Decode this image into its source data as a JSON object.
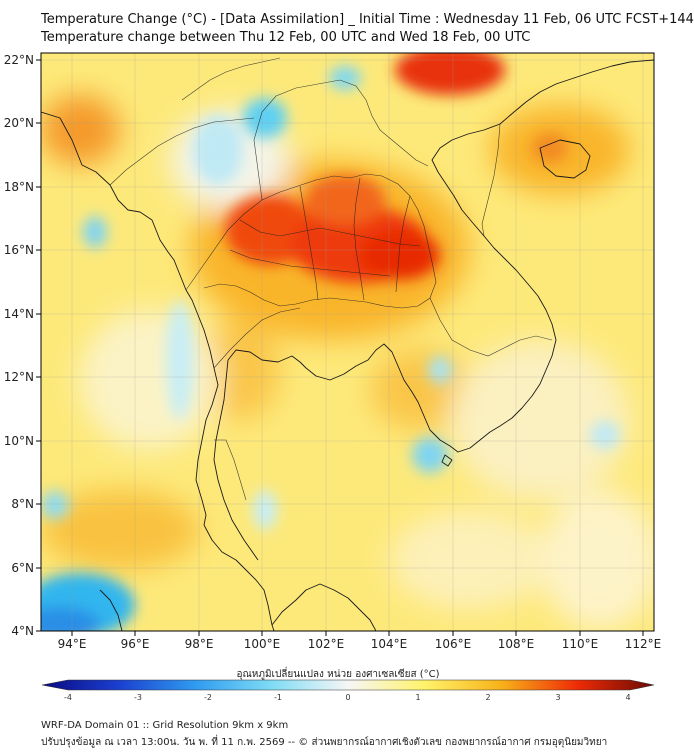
{
  "title": {
    "line1": "Temperature Change (°C) - [Data Assimilation] _ Initial Time : Wednesday 11 Feb, 06 UTC FCST+144",
    "line2": "Temperature change between Thu 12 Feb, 00 UTC and Wed 18 Feb, 00 UTC"
  },
  "axes": {
    "lat_labels": [
      "22°N",
      "20°N",
      "18°N",
      "16°N",
      "14°N",
      "12°N",
      "10°N",
      "8°N",
      "6°N",
      "4°N"
    ],
    "lon_labels": [
      "94°E",
      "96°E",
      "98°E",
      "100°E",
      "102°E",
      "104°E",
      "106°E",
      "108°E",
      "110°E",
      "112°E"
    ]
  },
  "colorbar": {
    "label": "อุณหภูมิเปลี่ยนแปลง หน่วย องศาเซลเซียส (°C)",
    "ticks": [
      "-4",
      "-3",
      "-2",
      "-1",
      "0",
      "1",
      "2",
      "3",
      "4"
    ],
    "stops": [
      "#0a0a80",
      "#1b3fd0",
      "#2f9bf0",
      "#7fdcf5",
      "#f6f6f6",
      "#fff36a",
      "#f7b21a",
      "#ee2b06",
      "#6a0a04"
    ]
  },
  "footer": {
    "line1": "WRF-DA Domain 01 :: Grid Resolution 9km x 9km",
    "line2": "ปรับปรุงข้อมูล ณ เวลา 13:00น. วัน พ. ที่ 11 ก.พ. 2569 -- © ส่วนพยากรณ์อากาศเชิงตัวเลข กองพยากรณ์อากาศ กรมอุตุนิยมวิทยา"
  }
}
